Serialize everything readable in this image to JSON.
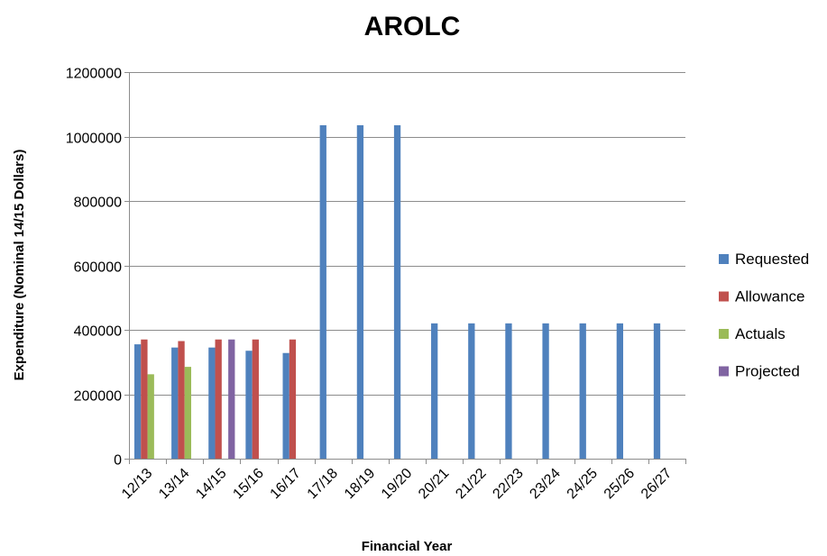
{
  "chart_data": {
    "type": "bar",
    "title": "AROLC",
    "xlabel": "Financial Year",
    "ylabel": "Expenditure (Nominal 14/15 Dollars)",
    "ylim": [
      0,
      1200000
    ],
    "yticks": [
      0,
      200000,
      400000,
      600000,
      800000,
      1000000,
      1200000
    ],
    "grid": true,
    "legend_position": "right",
    "categories": [
      "12/13",
      "13/14",
      "14/15",
      "15/16",
      "16/17",
      "17/18",
      "18/19",
      "19/20",
      "20/21",
      "21/22",
      "22/23",
      "23/24",
      "24/25",
      "25/26",
      "26/27"
    ],
    "series": [
      {
        "name": "Requested",
        "color": "#4f81bd",
        "values": [
          355000,
          345000,
          345000,
          335000,
          328000,
          1035000,
          1035000,
          1035000,
          420000,
          420000,
          420000,
          420000,
          420000,
          420000,
          420000
        ]
      },
      {
        "name": "Allowance",
        "color": "#c0504d",
        "values": [
          370000,
          365000,
          370000,
          370000,
          370000,
          null,
          null,
          null,
          null,
          null,
          null,
          null,
          null,
          null,
          null
        ]
      },
      {
        "name": "Actuals",
        "color": "#9bbb59",
        "values": [
          262000,
          285000,
          null,
          null,
          null,
          null,
          null,
          null,
          null,
          null,
          null,
          null,
          null,
          null,
          null
        ]
      },
      {
        "name": "Projected",
        "color": "#8064a2",
        "values": [
          null,
          null,
          370000,
          null,
          null,
          null,
          null,
          null,
          null,
          null,
          null,
          null,
          null,
          null,
          null
        ]
      }
    ]
  }
}
